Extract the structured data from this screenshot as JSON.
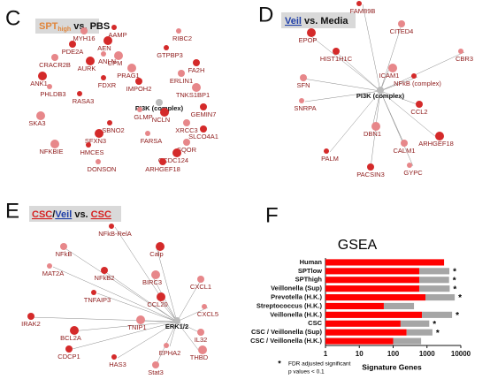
{
  "panel_c": {
    "letter": "C",
    "title_parts": [
      "SPT",
      "high",
      " vs. PBS"
    ],
    "labels": [
      "AAMP",
      "MYH16",
      "AEN",
      "RIBC2",
      "PDE2A",
      "CPM",
      "GTPBP3",
      "CRACR2B",
      "AURK",
      "ANLN",
      "FA2H",
      "PRAG1",
      "FDXR",
      "ERLIN1",
      "ANK1",
      "PHLDB3",
      "IMPOH2",
      "TNKS1BP1",
      "RASA3",
      "PI3K (complex)",
      "NCLN",
      "GLMP",
      "GEMIN7",
      "SKA3",
      "SBNO2",
      "XRCC3",
      "SFXN3",
      "FARSA",
      "SLCO4A1",
      "NFKBIE",
      "HMCES",
      "SQOR",
      "CCDC124",
      "DONSON",
      "ARHGEF18"
    ]
  },
  "panel_d": {
    "letter": "D",
    "title_parts": [
      "Veil",
      " vs. Media"
    ],
    "labels": [
      "FAM89B",
      "CITED4",
      "EPOP",
      "CBR3",
      "HIST1H1C",
      "ICAM1",
      "NFkB (complex)",
      "SFN",
      "PI3K (complex)",
      "SNRPA",
      "CCL2",
      "DBN1",
      "PALM",
      "CALM1",
      "ARHGEF18",
      "GYPC",
      "PACSIN3"
    ]
  },
  "panel_e": {
    "letter": "E",
    "title_parts": [
      "CSC",
      "/",
      "Veil",
      " vs. ",
      "CSC"
    ],
    "labels": [
      "NFkB-RelA",
      "NFkB",
      "Calp",
      "MAT2A",
      "NFkB2",
      "BIRC3",
      "TNFAIP3",
      "CXCL1",
      "CCL20",
      "CXCL5",
      "IRAK2",
      "TNIP1",
      "ERK1/2",
      "IL32",
      "BCL2A",
      "EPHA2",
      "CDCP1",
      "THBD",
      "HAS3",
      "Stat3"
    ]
  },
  "chart_data": {
    "type": "bar",
    "orientation": "horizontal",
    "stacked": true,
    "letter": "F",
    "title": "GSEA",
    "x_label": "Signature Genes",
    "xscale": "log",
    "xlim": [
      1,
      10000
    ],
    "xticks": [
      1,
      10,
      100,
      1000,
      10000
    ],
    "categories": [
      "Human",
      "SPTlow",
      "SPThigh",
      "Veillonella (Sup)",
      "Prevotella (H.K.)",
      "Streptococcus (H.K.)",
      "Veillonella (H.K.)",
      "CSC",
      "CSC / Veillonella (Sup)",
      "CSC / Veillonella (H.K.)"
    ],
    "series": [
      {
        "color": "#ff0000",
        "values": [
          3200,
          590,
          590,
          590,
          900,
          53,
          710,
          166,
          250,
          100
        ]
      },
      {
        "color": "#a6a6a6",
        "values": [
          null,
          4000,
          3900,
          4100,
          5700,
          360,
          4800,
          1000,
          1200,
          570
        ]
      }
    ],
    "star": "*",
    "starred": [
      false,
      true,
      true,
      true,
      true,
      false,
      true,
      true,
      true,
      false
    ],
    "footnote": [
      "FDR adjusted significant",
      "p values < 0.1"
    ]
  }
}
